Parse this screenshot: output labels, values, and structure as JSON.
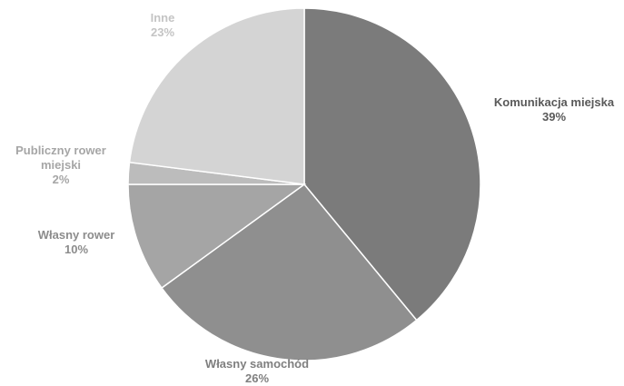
{
  "chart_data": {
    "type": "pie",
    "title": "",
    "slices": [
      {
        "label": "Komunikacja miejska",
        "value": 39,
        "value_label": "39%",
        "color": "#7b7b7b",
        "label_color": "#595959",
        "label_lines": [
          "Komunikacja miejska"
        ]
      },
      {
        "label": "Własny samochód",
        "value": 26,
        "value_label": "26%",
        "color": "#8f8f8f",
        "label_color": "#7f7f7f",
        "label_lines": [
          "Własny samochód"
        ]
      },
      {
        "label": "Własny rower",
        "value": 10,
        "value_label": "10%",
        "color": "#a5a5a5",
        "label_color": "#8c8c8c",
        "label_lines": [
          "Własny rower"
        ]
      },
      {
        "label": "Publiczny rower miejski",
        "value": 2,
        "value_label": "2%",
        "color": "#bcbcbc",
        "label_color": "#a6a6a6",
        "label_lines": [
          "Publiczny rower",
          "miejski"
        ]
      },
      {
        "label": "Inne",
        "value": 23,
        "value_label": "23%",
        "color": "#d4d4d4",
        "label_color": "#c4c4c4",
        "label_lines": [
          "Inne"
        ]
      }
    ],
    "start_angle_deg": 0,
    "direction": "clockwise",
    "legend": "none",
    "slice_border_color": "#ffffff"
  }
}
